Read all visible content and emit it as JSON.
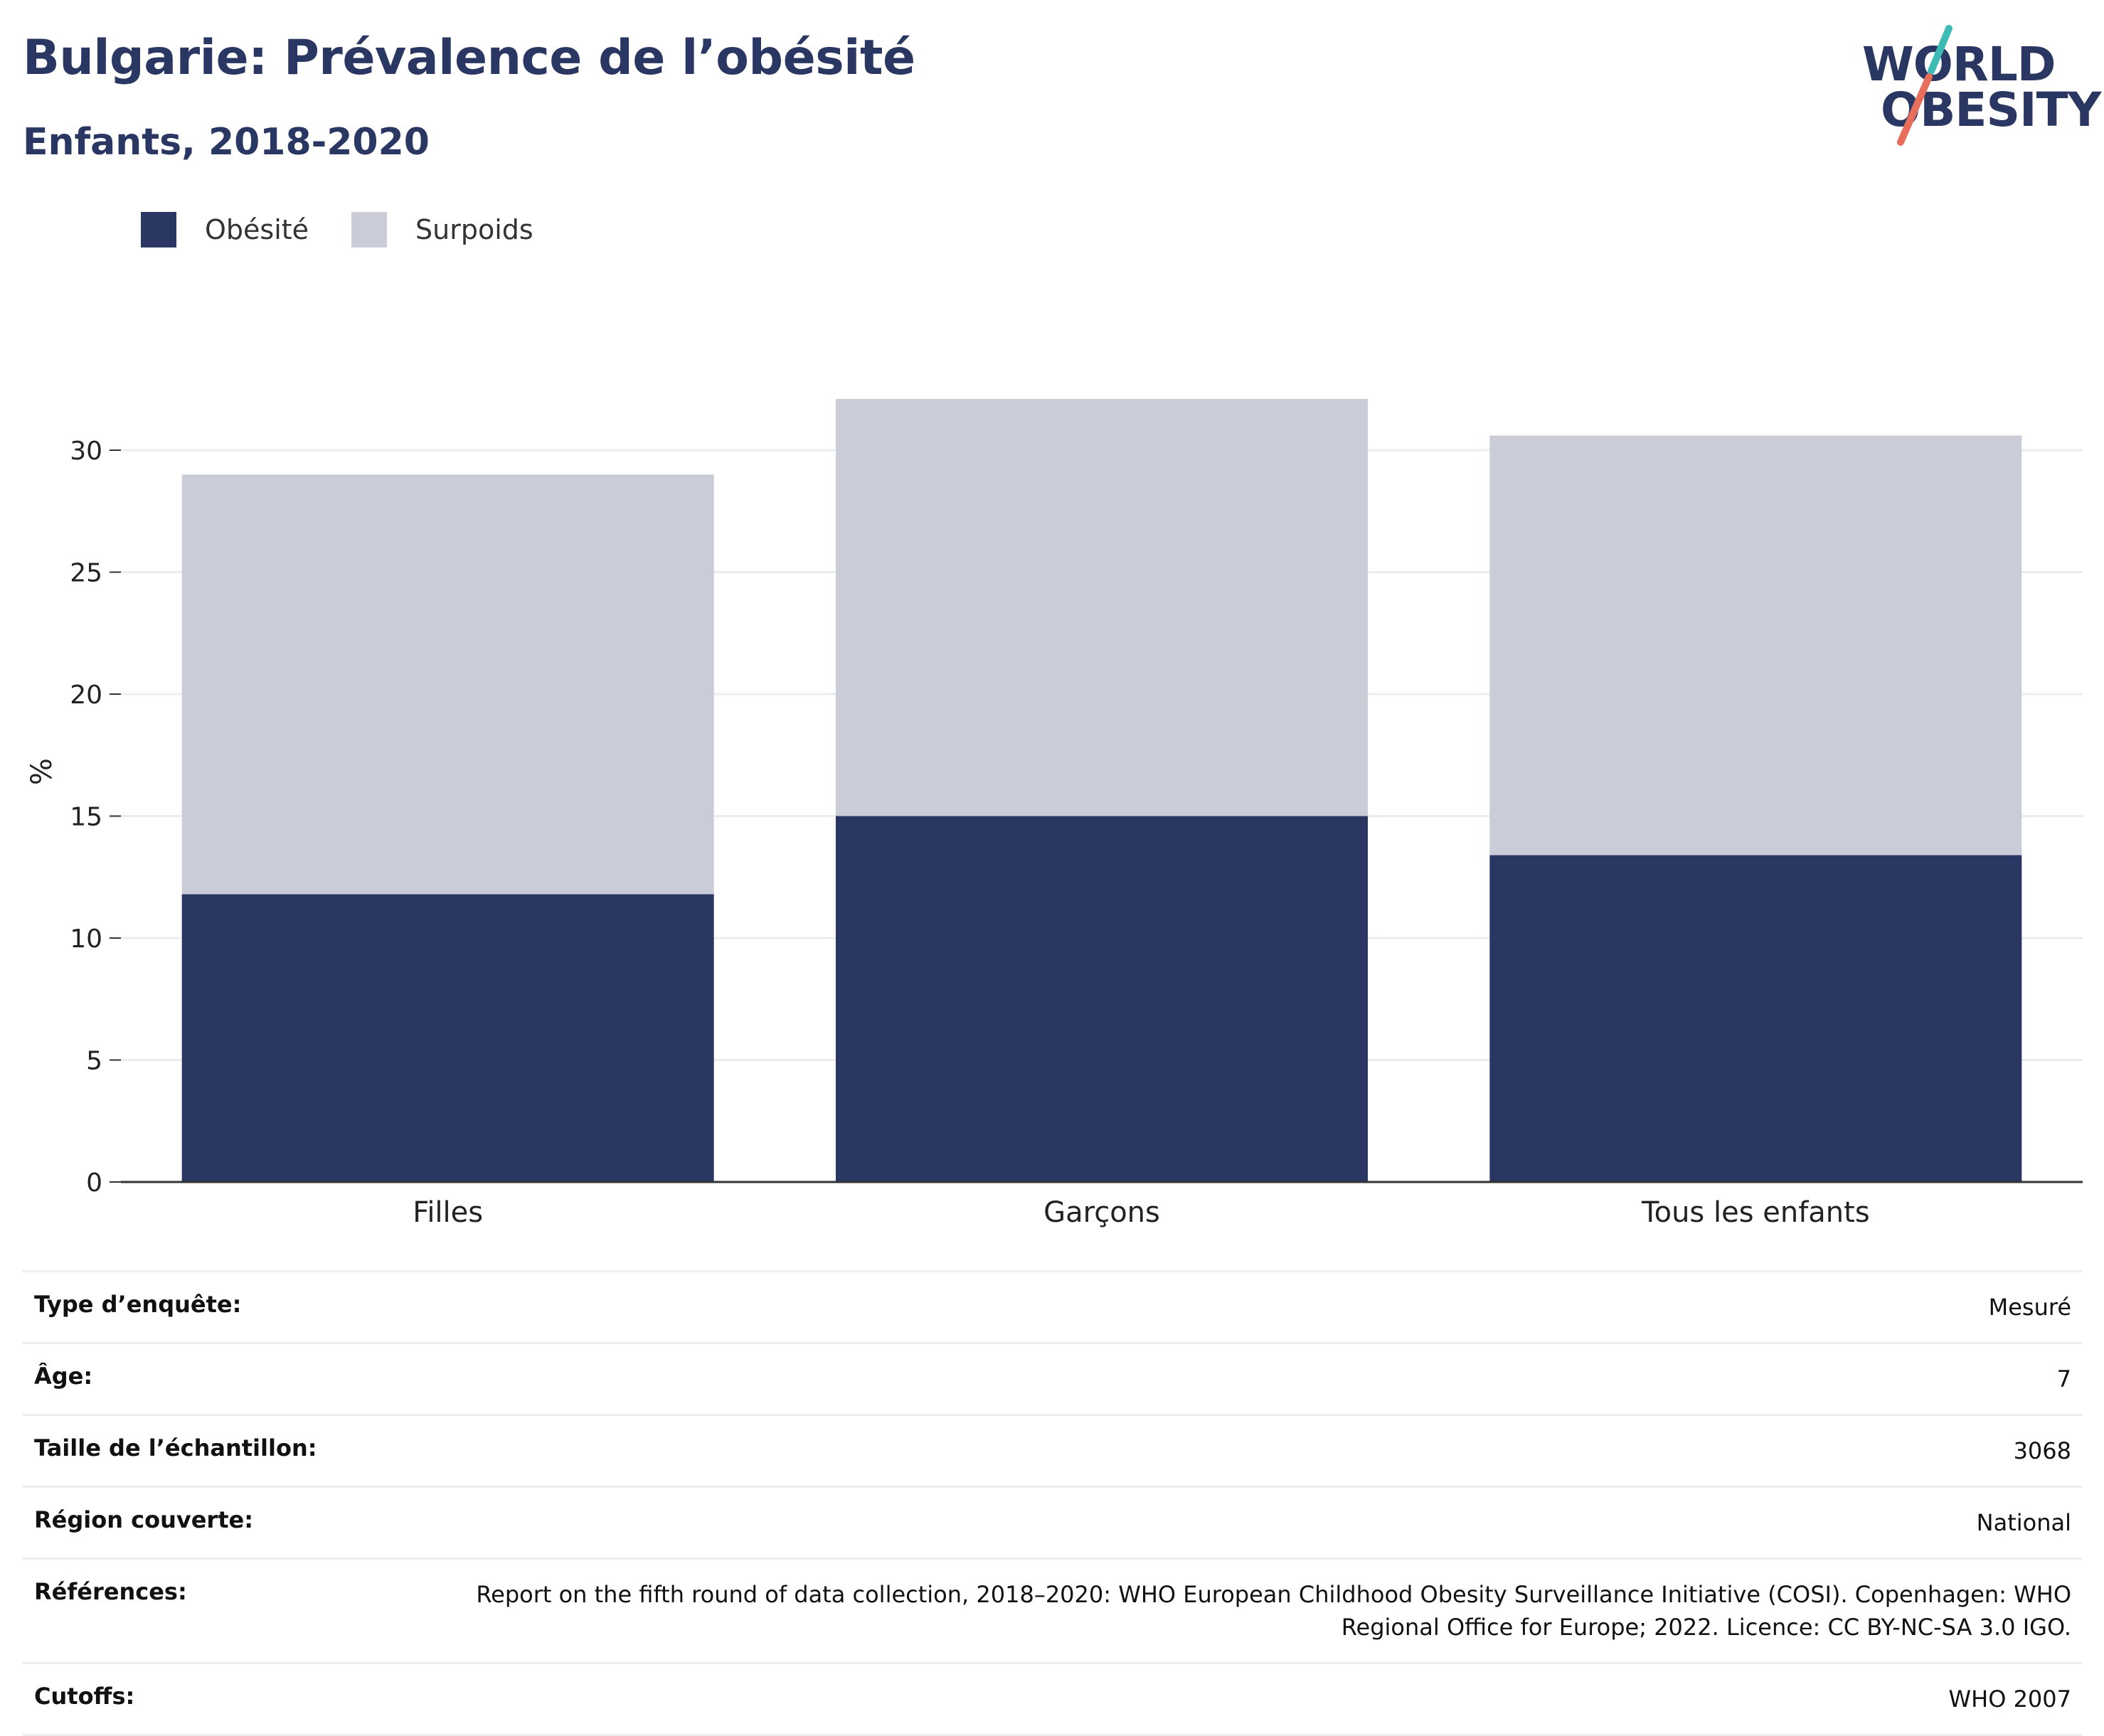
{
  "header": {
    "title": "Bulgarie: Prévalence de l’obésité",
    "subtitle": "Enfants, 2018-2020"
  },
  "logo": {
    "line1": "WORLD",
    "line2": "OBESITY",
    "accent_teal": "#3cbcb4",
    "accent_coral": "#e66e5a"
  },
  "colors": {
    "obesity": "#2a3763",
    "overweight": "#cacdd8",
    "grid": "#ebecef",
    "axis": "#333333"
  },
  "legend": [
    {
      "label": "Obésité",
      "color": "#2a3763"
    },
    {
      "label": "Surpoids",
      "color": "#cacdd8"
    }
  ],
  "chart_data": {
    "type": "bar",
    "stacked": true,
    "ylabel": "%",
    "ylim": [
      0,
      32.5
    ],
    "yticks": [
      0,
      5,
      10,
      15,
      20,
      25,
      30
    ],
    "grid": true,
    "legend_position": "top-left",
    "categories": [
      "Filles",
      "Garçons",
      "Tous les enfants"
    ],
    "series": [
      {
        "name": "Obésité",
        "values": [
          11.8,
          15.0,
          13.4
        ]
      },
      {
        "name": "Surpoids",
        "values": [
          17.2,
          17.1,
          17.2
        ]
      }
    ]
  },
  "meta": [
    {
      "key": "Type d’enquête:",
      "value": "Mesuré"
    },
    {
      "key": "Âge:",
      "value": "7"
    },
    {
      "key": "Taille de l’échantillon:",
      "value": "3068"
    },
    {
      "key": "Région couverte:",
      "value": "National"
    },
    {
      "key": "Références:",
      "value": "Report on the fifth round of data collection, 2018–2020: WHO European Childhood Obesity Surveillance Initiative (COSI). Copenhagen: WHO Regional Office for Europe; 2022. Licence: CC BY-NC-SA 3.0 IGO."
    },
    {
      "key": "Cutoffs:",
      "value": "WHO 2007"
    }
  ]
}
